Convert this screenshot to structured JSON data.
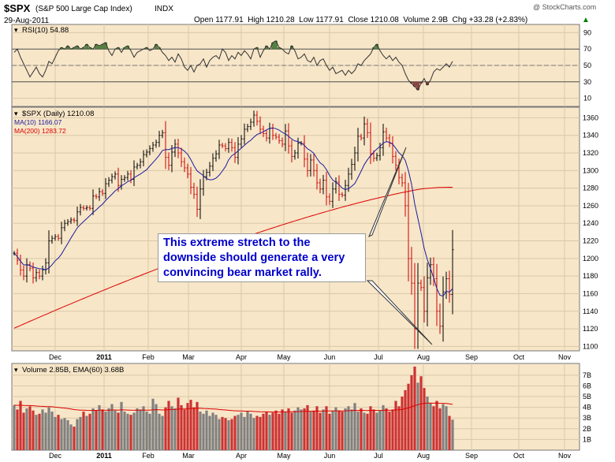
{
  "header": {
    "symbol": "$SPX",
    "name": "(S&P 500 Large Cap Index)",
    "exchange": "INDX",
    "date": "29-Aug-2011",
    "ohlc": "Open 1177.91  High 1210.28  Low 1177.91  Close 1210.08  Volume 2.9B  Chg +33.28 (+2.83%)",
    "change_arrow": "▲",
    "brand": "@ StockCharts.com"
  },
  "legends": {
    "rsi": "RSI(10) 54.88",
    "price": "$SPX (Daily) 1210.08",
    "ma10": "MA(10) 1166.07",
    "ma200": "MA(200) 1283.72",
    "volume": "Volume 2.85B, EMA(60) 3.68B"
  },
  "annotation": {
    "text": "This extreme stretch to the downside should generate a very convincing bear market rally."
  },
  "colors": {
    "panel_bg": "#f7e6c8",
    "grid": "#d9c9a8",
    "up": "#000000",
    "down": "#cc0000",
    "ma10": "#1c1c9e",
    "ma200": "#dd0000",
    "rsi_fill": "#3a6e2a",
    "vol_down": "#cc3333",
    "vol_up": "#808080"
  },
  "chart_data": [
    {
      "type": "line",
      "title": "RSI(10) 54.88",
      "ylim": [
        0,
        100
      ],
      "y_ticks": [
        10,
        30,
        50,
        70,
        90
      ],
      "levels": [
        30,
        70
      ],
      "series": [
        {
          "name": "RSI(10)",
          "values": [
            66,
            70,
            60,
            52,
            44,
            36,
            42,
            48,
            40,
            36,
            44,
            55,
            52,
            60,
            68,
            72,
            70,
            74,
            70,
            72,
            74,
            70,
            72,
            76,
            72,
            70,
            76,
            74,
            76,
            78,
            68,
            62,
            70,
            72,
            66,
            72,
            74,
            68,
            60,
            66,
            68,
            70,
            72,
            68,
            70,
            76,
            72,
            66,
            62,
            56,
            60,
            54,
            64,
            58,
            48,
            44,
            50,
            42,
            50,
            52,
            58,
            48,
            56,
            60,
            62,
            58,
            70,
            66,
            56,
            62,
            58,
            66,
            62,
            68,
            64,
            58,
            70,
            72,
            60,
            68,
            74,
            70,
            78,
            80,
            72,
            70,
            66,
            64,
            74,
            68,
            58,
            60,
            64,
            56,
            54,
            60,
            50,
            56,
            58,
            50,
            44,
            48,
            40,
            42,
            44,
            38,
            44,
            40,
            44,
            52,
            50,
            56,
            60,
            64,
            72,
            76,
            68,
            62,
            58,
            62,
            56,
            60,
            54,
            50,
            40,
            32,
            28,
            24,
            20,
            28,
            34,
            26,
            32,
            42,
            46,
            44,
            48,
            52,
            48,
            55
          ]
        }
      ]
    },
    {
      "type": "line",
      "title": "$SPX (Daily) 1210.08",
      "x_labels": [
        "Dec",
        "2011",
        "Feb",
        "Mar",
        "Apr",
        "May",
        "Jun",
        "Jul",
        "Aug",
        "Sep",
        "Oct",
        "Nov"
      ],
      "ylim": [
        1095,
        1372
      ],
      "y_ticks": [
        1100,
        1120,
        1140,
        1160,
        1180,
        1200,
        1220,
        1240,
        1260,
        1280,
        1300,
        1320,
        1340,
        1360
      ],
      "series": [
        {
          "name": "$SPX",
          "values": [
            1206,
            1198,
            1187,
            1180,
            1193,
            1189,
            1178,
            1184,
            1180,
            1187,
            1195,
            1220,
            1223,
            1225,
            1223,
            1235,
            1240,
            1242,
            1244,
            1243,
            1253,
            1258,
            1257,
            1258,
            1257,
            1271,
            1270,
            1276,
            1274,
            1285,
            1289,
            1293,
            1296,
            1283,
            1290,
            1292,
            1296,
            1290,
            1304,
            1306,
            1310,
            1318,
            1321,
            1325,
            1329,
            1332,
            1340,
            1343,
            1315,
            1306,
            1321,
            1330,
            1320,
            1310,
            1303,
            1296,
            1281,
            1273,
            1256,
            1279,
            1293,
            1298,
            1305,
            1314,
            1319,
            1329,
            1328,
            1325,
            1332,
            1326,
            1315,
            1330,
            1336,
            1347,
            1350,
            1355,
            1363,
            1356,
            1347,
            1342,
            1337,
            1348,
            1340,
            1338,
            1334,
            1330,
            1345,
            1328,
            1316,
            1320,
            1331,
            1331,
            1313,
            1300,
            1312,
            1300,
            1286,
            1279,
            1289,
            1270,
            1265,
            1279,
            1287,
            1273,
            1272,
            1283,
            1296,
            1307,
            1320,
            1339,
            1337,
            1353,
            1343,
            1319,
            1314,
            1317,
            1326,
            1344,
            1337,
            1331,
            1316,
            1306,
            1292,
            1286,
            1260,
            1200,
            1172,
            1120,
            1172,
            1167,
            1140,
            1178,
            1193,
            1177,
            1140,
            1123,
            1162,
            1177,
            1159,
            1210
          ]
        },
        {
          "name": "MA(10)",
          "value": 1166.07
        },
        {
          "name": "MA(200)",
          "value": 1283.72
        }
      ]
    },
    {
      "type": "bar",
      "title": "Volume 2.85B, EMA(60) 3.68B",
      "ylim": [
        0,
        7.8
      ],
      "y_ticks": [
        "1B",
        "2B",
        "3B",
        "4B",
        "5B",
        "6B",
        "7B"
      ],
      "series": [
        {
          "name": "Volume",
          "values": [
            4.2,
            3.8,
            4.6,
            3.5,
            3.9,
            4.1,
            3.7,
            3.3,
            3.4,
            3.8,
            3.5,
            4.0,
            3.6,
            3.1,
            3.3,
            2.9,
            3.0,
            2.8,
            2.4,
            2.2,
            2.9,
            3.1,
            3.6,
            3.2,
            3.4,
            3.9,
            3.7,
            4.2,
            3.8,
            3.6,
            3.9,
            4.3,
            3.7,
            3.5,
            4.5,
            3.6,
            3.4,
            3.3,
            3.5,
            3.9,
            3.8,
            4.1,
            3.6,
            3.4,
            4.8,
            4.3,
            3.4,
            3.2,
            4.0,
            4.6,
            4.1,
            3.9,
            4.9,
            4.2,
            3.8,
            4.4,
            4.7,
            4.0,
            4.5,
            3.6,
            3.4,
            3.7,
            3.2,
            3.5,
            3.3,
            2.9,
            3.1,
            3.0,
            2.8,
            2.9,
            3.2,
            3.3,
            3.5,
            3.1,
            3.6,
            3.4,
            3.0,
            3.2,
            3.1,
            3.4,
            3.6,
            3.3,
            3.5,
            3.7,
            3.4,
            3.8,
            3.6,
            3.9,
            3.5,
            3.7,
            4.0,
            3.8,
            3.9,
            4.2,
            3.6,
            3.7,
            4.1,
            3.5,
            3.8,
            4.1,
            3.4,
            3.7,
            4.0,
            3.7,
            3.6,
            3.9,
            4.1,
            3.8,
            4.4,
            3.6,
            3.9,
            3.5,
            3.4,
            4.1,
            3.8,
            3.5,
            3.7,
            4.2,
            3.9,
            3.6,
            3.8,
            4.6,
            4.1,
            5.0,
            5.6,
            6.2,
            7.0,
            7.8,
            6.3,
            6.9,
            5.8,
            5.0,
            4.4,
            4.1,
            4.6,
            3.9,
            4.3,
            4.1,
            3.2,
            2.85
          ]
        },
        {
          "name": "EMA(60)",
          "value": 3.68
        }
      ]
    }
  ]
}
